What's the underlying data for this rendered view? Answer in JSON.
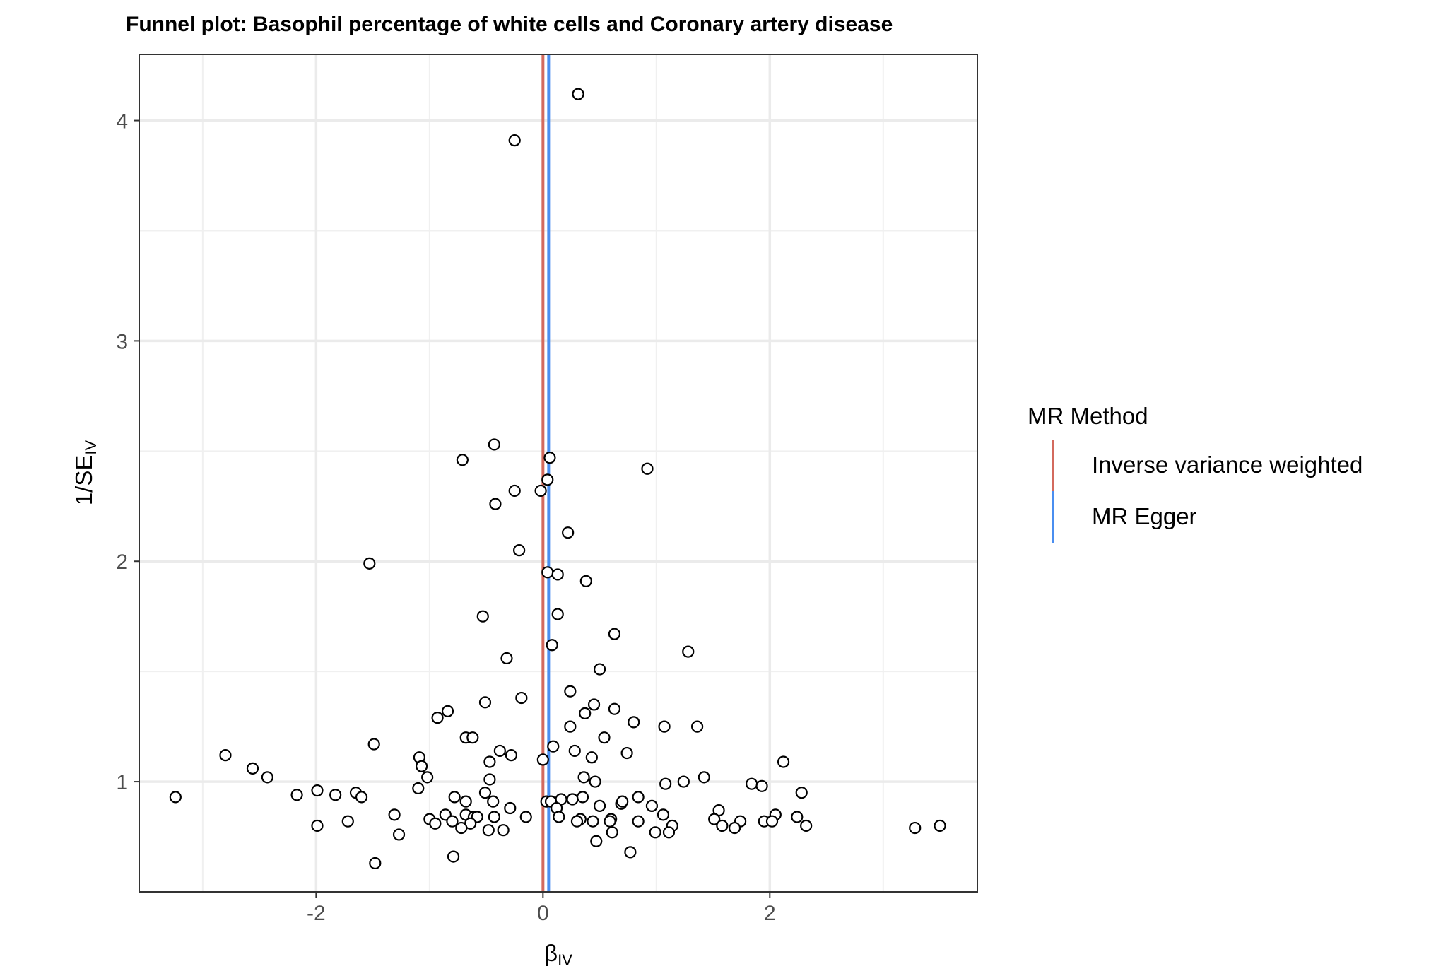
{
  "chart_data": {
    "type": "scatter",
    "title": "Funnel plot: Basophil percentage of white cells and Coronary artery disease",
    "xlabel": {
      "main": "β",
      "sub": "IV"
    },
    "ylabel": {
      "main": "1/SE",
      "sub": "IV"
    },
    "xlim": [
      -3.56,
      3.83
    ],
    "ylim": [
      0.5,
      4.3
    ],
    "x_ticks": [
      -2,
      0,
      2
    ],
    "x_tick_labels": [
      "-2",
      "0",
      "2"
    ],
    "y_ticks": [
      1,
      2,
      3,
      4
    ],
    "y_tick_labels": [
      "1",
      "2",
      "3",
      "4"
    ],
    "grid": true,
    "legend": {
      "title": "MR Method",
      "position": "right",
      "items": [
        {
          "label": "Inverse variance weighted",
          "color": "#d36a5e"
        },
        {
          "label": "MR Egger",
          "color": "#4a8ef0"
        }
      ]
    },
    "vlines": [
      {
        "method": "Inverse variance weighted",
        "x": 0.0,
        "color": "#d36a5e"
      },
      {
        "method": "MR Egger",
        "x": 0.05,
        "color": "#4a8ef0"
      }
    ],
    "points": [
      [
        0.31,
        4.12
      ],
      [
        -0.25,
        3.91
      ],
      [
        -0.43,
        2.53
      ],
      [
        0.06,
        2.47
      ],
      [
        -0.71,
        2.46
      ],
      [
        0.92,
        2.42
      ],
      [
        0.04,
        2.37
      ],
      [
        -0.25,
        2.32
      ],
      [
        -0.02,
        2.32
      ],
      [
        -0.42,
        2.26
      ],
      [
        0.22,
        2.13
      ],
      [
        -0.21,
        2.05
      ],
      [
        -1.53,
        1.99
      ],
      [
        0.04,
        1.95
      ],
      [
        0.13,
        1.94
      ],
      [
        0.38,
        1.91
      ],
      [
        -0.53,
        1.75
      ],
      [
        0.13,
        1.76
      ],
      [
        0.63,
        1.67
      ],
      [
        0.08,
        1.62
      ],
      [
        1.28,
        1.59
      ],
      [
        -0.32,
        1.56
      ],
      [
        0.5,
        1.51
      ],
      [
        0.24,
        1.41
      ],
      [
        -0.19,
        1.38
      ],
      [
        -0.51,
        1.36
      ],
      [
        0.45,
        1.35
      ],
      [
        0.63,
        1.33
      ],
      [
        -0.84,
        1.32
      ],
      [
        0.37,
        1.31
      ],
      [
        -0.93,
        1.29
      ],
      [
        0.8,
        1.27
      ],
      [
        1.07,
        1.25
      ],
      [
        1.36,
        1.25
      ],
      [
        0.24,
        1.25
      ],
      [
        -0.68,
        1.2
      ],
      [
        -0.62,
        1.2
      ],
      [
        0.54,
        1.2
      ],
      [
        -1.49,
        1.17
      ],
      [
        0.09,
        1.16
      ],
      [
        -0.38,
        1.14
      ],
      [
        0.28,
        1.14
      ],
      [
        0.74,
        1.13
      ],
      [
        -2.8,
        1.12
      ],
      [
        -1.09,
        1.11
      ],
      [
        0.43,
        1.11
      ],
      [
        -0.28,
        1.12
      ],
      [
        -0.47,
        1.09
      ],
      [
        0.0,
        1.1
      ],
      [
        2.12,
        1.09
      ],
      [
        -1.07,
        1.07
      ],
      [
        -2.56,
        1.06
      ],
      [
        -2.43,
        1.02
      ],
      [
        -1.02,
        1.02
      ],
      [
        0.36,
        1.02
      ],
      [
        1.42,
        1.02
      ],
      [
        -0.47,
        1.01
      ],
      [
        0.46,
        1.0
      ],
      [
        1.24,
        1.0
      ],
      [
        1.08,
        0.99
      ],
      [
        1.84,
        0.99
      ],
      [
        1.93,
        0.98
      ],
      [
        -1.1,
        0.97
      ],
      [
        -0.51,
        0.95
      ],
      [
        2.28,
        0.95
      ],
      [
        -1.65,
        0.95
      ],
      [
        -1.83,
        0.94
      ],
      [
        -2.17,
        0.94
      ],
      [
        -1.99,
        0.96
      ],
      [
        -0.78,
        0.93
      ],
      [
        -3.24,
        0.93
      ],
      [
        -1.6,
        0.93
      ],
      [
        0.35,
        0.93
      ],
      [
        0.84,
        0.93
      ],
      [
        0.26,
        0.92
      ],
      [
        0.16,
        0.92
      ],
      [
        0.03,
        0.91
      ],
      [
        0.07,
        0.91
      ],
      [
        -0.44,
        0.91
      ],
      [
        -0.68,
        0.91
      ],
      [
        0.69,
        0.9
      ],
      [
        0.7,
        0.91
      ],
      [
        0.5,
        0.89
      ],
      [
        0.96,
        0.89
      ],
      [
        -0.29,
        0.88
      ],
      [
        0.12,
        0.88
      ],
      [
        1.55,
        0.87
      ],
      [
        1.06,
        0.85
      ],
      [
        2.05,
        0.85
      ],
      [
        2.24,
        0.84
      ],
      [
        -1.31,
        0.85
      ],
      [
        -0.86,
        0.85
      ],
      [
        -0.68,
        0.85
      ],
      [
        -0.61,
        0.84
      ],
      [
        -0.58,
        0.84
      ],
      [
        -0.43,
        0.84
      ],
      [
        -0.15,
        0.84
      ],
      [
        0.14,
        0.84
      ],
      [
        0.33,
        0.83
      ],
      [
        0.6,
        0.83
      ],
      [
        -1.0,
        0.83
      ],
      [
        0.44,
        0.82
      ],
      [
        0.84,
        0.82
      ],
      [
        1.51,
        0.83
      ],
      [
        1.74,
        0.82
      ],
      [
        1.95,
        0.82
      ],
      [
        2.02,
        0.82
      ],
      [
        -1.72,
        0.82
      ],
      [
        -0.8,
        0.82
      ],
      [
        -0.95,
        0.81
      ],
      [
        -0.64,
        0.81
      ],
      [
        0.3,
        0.82
      ],
      [
        0.59,
        0.82
      ],
      [
        -1.99,
        0.8
      ],
      [
        1.14,
        0.8
      ],
      [
        1.58,
        0.8
      ],
      [
        2.32,
        0.8
      ],
      [
        3.5,
        0.8
      ],
      [
        3.28,
        0.79
      ],
      [
        1.69,
        0.79
      ],
      [
        -0.72,
        0.79
      ],
      [
        -0.48,
        0.78
      ],
      [
        -0.35,
        0.78
      ],
      [
        1.11,
        0.77
      ],
      [
        0.99,
        0.77
      ],
      [
        0.61,
        0.77
      ],
      [
        -1.27,
        0.76
      ],
      [
        0.47,
        0.73
      ],
      [
        0.77,
        0.68
      ],
      [
        -0.79,
        0.66
      ],
      [
        -1.48,
        0.63
      ]
    ]
  }
}
